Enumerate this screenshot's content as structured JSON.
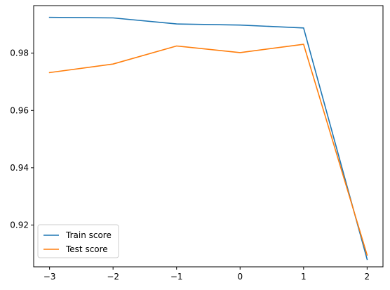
{
  "chart_data": {
    "type": "line",
    "title": "",
    "xlabel": "",
    "ylabel": "",
    "x": [
      -3,
      -2,
      -1,
      0,
      1,
      2
    ],
    "xticks": [
      -3,
      -2,
      -1,
      0,
      1,
      2
    ],
    "xtick_labels": [
      "−3",
      "−2",
      "−1",
      "0",
      "1",
      "2"
    ],
    "yticks": [
      0.92,
      0.94,
      0.96,
      0.98
    ],
    "ytick_labels": [
      "0.92",
      "0.94",
      "0.96",
      "0.98"
    ],
    "xlim": [
      -3.25,
      2.25
    ],
    "ylim": [
      0.9054,
      0.9966
    ],
    "grid": false,
    "legend_position": "lower-left",
    "series": [
      {
        "name": "Train score",
        "color": "#1f77b4",
        "values": [
          0.9925,
          0.9923,
          0.9902,
          0.9898,
          0.9888,
          0.908
        ]
      },
      {
        "name": "Test score",
        "color": "#ff7f0e",
        "values": [
          0.9732,
          0.9762,
          0.9825,
          0.9802,
          0.9831,
          0.9095
        ]
      }
    ]
  }
}
